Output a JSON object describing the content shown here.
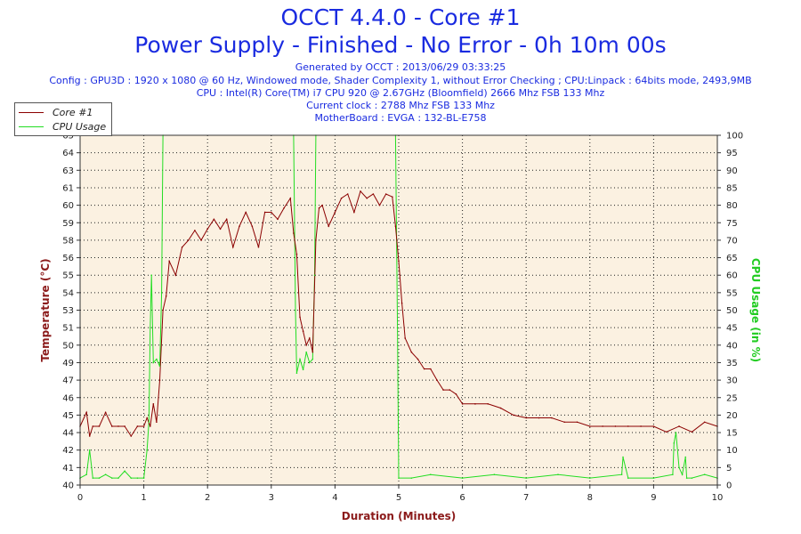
{
  "header": {
    "title_line1": "OCCT 4.4.0 - Core #1",
    "title_line2": "Power Supply - Finished - No Error - 0h 10m 00s",
    "generated": "Generated by OCCT : 2013/06/29 03:33:25",
    "config": "Config : GPU3D : 1920 x 1080 @ 60 Hz, Windowed mode, Shader Complexity 1, without Error Checking ; CPU:Linpack : 64bits mode, 2493,9MB",
    "cpu": "CPU : Intel(R) Core(TM) i7 CPU 920 @ 2.67GHz (Bloomfield) 2666 Mhz FSB 133 Mhz",
    "clock": "Current clock : 2788 Mhz FSB 133 Mhz",
    "motherboard": "MotherBoard : EVGA : 132-BL-E758"
  },
  "legend": {
    "entries": [
      "Core #1",
      "CPU Usage"
    ],
    "placement": "top-left, outside plot"
  },
  "colors": {
    "title": "#1a2be0",
    "temperature_series": "#8b0000",
    "cpu_usage_series": "#22dd22",
    "plot_background": "#fbf1e1",
    "grid": "#222222",
    "left_axis_label": "#8b1a1a",
    "right_axis_label": "#22cc22",
    "x_axis_label": "#8b1a1a"
  },
  "chart_data": {
    "type": "line",
    "xlabel": "Duration (Minutes)",
    "ylabel": "Temperature (°C)",
    "y2label": "CPU Usage (in %)",
    "xlim": [
      0,
      10
    ],
    "ylim": [
      40,
      65
    ],
    "y2lim": [
      0,
      100
    ],
    "grid": true,
    "x_ticks": [
      0,
      1,
      2,
      3,
      4,
      5,
      6,
      7,
      8,
      9,
      10
    ],
    "y_ticks": [
      40,
      41,
      42,
      44,
      45,
      46,
      47,
      49,
      50,
      51,
      53,
      54,
      55,
      56,
      58,
      59,
      60,
      61,
      63,
      64,
      65
    ],
    "y2_ticks": [
      0,
      5,
      10,
      15,
      20,
      25,
      30,
      35,
      40,
      45,
      50,
      55,
      60,
      65,
      70,
      75,
      80,
      85,
      90,
      95,
      100
    ],
    "series": [
      {
        "name": "Core #1",
        "axis": "left",
        "x": [
          0,
          0.1,
          0.15,
          0.2,
          0.3,
          0.4,
          0.5,
          0.6,
          0.7,
          0.8,
          0.9,
          1.0,
          1.05,
          1.1,
          1.15,
          1.2,
          1.25,
          1.3,
          1.35,
          1.4,
          1.5,
          1.6,
          1.7,
          1.8,
          1.9,
          2.0,
          2.1,
          2.2,
          2.3,
          2.4,
          2.5,
          2.6,
          2.7,
          2.8,
          2.9,
          3.0,
          3.1,
          3.2,
          3.3,
          3.35,
          3.4,
          3.45,
          3.5,
          3.55,
          3.6,
          3.65,
          3.7,
          3.75,
          3.8,
          3.9,
          4.0,
          4.1,
          4.2,
          4.3,
          4.4,
          4.5,
          4.6,
          4.7,
          4.8,
          4.9,
          4.95,
          5.0,
          5.05,
          5.1,
          5.2,
          5.3,
          5.4,
          5.5,
          5.6,
          5.7,
          5.8,
          5.9,
          6.0,
          6.2,
          6.4,
          6.6,
          6.8,
          7.0,
          7.2,
          7.4,
          7.6,
          7.8,
          8.0,
          8.2,
          8.4,
          8.6,
          8.8,
          9.0,
          9.2,
          9.4,
          9.6,
          9.8,
          10.0
        ],
        "values": [
          44.2,
          45.2,
          43.5,
          44.2,
          44.2,
          45.2,
          44.2,
          44.2,
          44.2,
          43.5,
          44.2,
          44.2,
          44.8,
          44.2,
          45.8,
          44.5,
          47.5,
          52.5,
          53.5,
          56.0,
          55.0,
          57.0,
          57.5,
          58.2,
          57.5,
          58.3,
          59.0,
          58.3,
          59.0,
          57.0,
          58.5,
          59.5,
          58.5,
          57.0,
          59.5,
          59.5,
          59.0,
          59.8,
          60.5,
          58.0,
          56.5,
          52.0,
          51.0,
          50.0,
          50.5,
          49.5,
          57.5,
          59.8,
          60.0,
          58.5,
          59.5,
          60.5,
          60.8,
          59.5,
          61.0,
          60.5,
          60.8,
          60.0,
          60.8,
          60.6,
          58.5,
          56.0,
          53.0,
          50.5,
          49.5,
          49.0,
          48.3,
          48.3,
          47.5,
          46.8,
          46.8,
          46.5,
          45.8,
          45.8,
          45.8,
          45.5,
          45.0,
          44.8,
          44.8,
          44.8,
          44.5,
          44.5,
          44.2,
          44.2,
          44.2,
          44.2,
          44.2,
          44.2,
          43.8,
          44.2,
          43.8,
          44.5,
          44.2
        ]
      },
      {
        "name": "CPU Usage",
        "axis": "right",
        "x": [
          0,
          0.1,
          0.15,
          0.2,
          0.3,
          0.4,
          0.5,
          0.6,
          0.7,
          0.8,
          0.9,
          1.0,
          1.05,
          1.08,
          1.1,
          1.12,
          1.15,
          1.2,
          1.25,
          1.28,
          1.3,
          3.35,
          3.38,
          3.4,
          3.45,
          3.5,
          3.55,
          3.6,
          3.65,
          3.68,
          3.7,
          4.95,
          4.98,
          5.0,
          5.2,
          5.5,
          6.0,
          6.5,
          7.0,
          7.5,
          8.0,
          8.5,
          8.52,
          8.6,
          9.0,
          9.3,
          9.32,
          9.35,
          9.4,
          9.45,
          9.5,
          9.52,
          9.6,
          9.8,
          10.0
        ],
        "values": [
          2,
          3,
          10,
          2,
          2,
          3,
          2,
          2,
          4,
          2,
          2,
          2,
          10,
          18,
          45,
          60,
          35,
          36,
          34,
          55,
          100,
          100,
          50,
          32,
          36,
          33,
          38,
          35,
          36,
          60,
          100,
          100,
          45,
          2,
          2,
          3,
          2,
          3,
          2,
          3,
          2,
          3,
          8,
          2,
          2,
          3,
          12,
          15,
          5,
          3,
          8,
          2,
          2,
          3,
          2
        ]
      }
    ]
  }
}
